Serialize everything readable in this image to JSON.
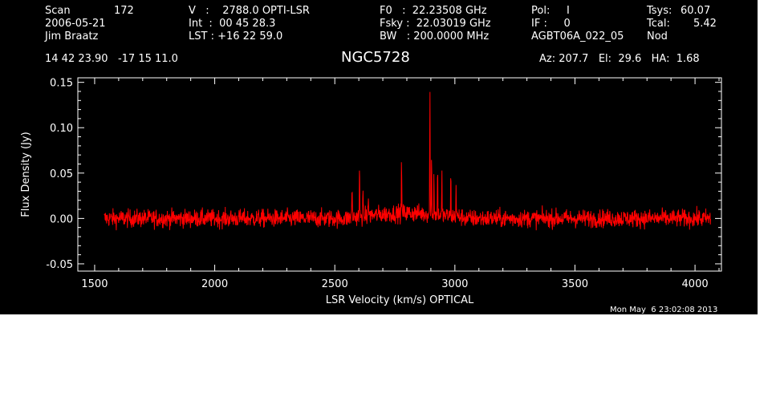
{
  "header": {
    "col1": {
      "scan_label": "Scan",
      "scan_value": "172",
      "date": "2006-05-21",
      "observer": "Jim Braatz"
    },
    "col2": {
      "v_line": "V   :    2788.0 OPTI-LSR",
      "int_line": "Int  :  00 45 28.3",
      "lst_line": "LST : +16 22 59.0"
    },
    "col3": {
      "f0_line": "F0   :  22.23508 GHz",
      "fsky_line": "Fsky :  22.03019 GHz",
      "bw_line": "BW   : 200.0000 MHz"
    },
    "col4": {
      "pol_line": "Pol:     I",
      "if_line": "IF :     0",
      "project": "AGBT06A_022_05"
    },
    "col5": {
      "tsys_label": "Tsys:",
      "tsys_value": "60.07",
      "tcal_label": "Tcal:",
      "tcal_value": "5.42",
      "mode": "Nod"
    },
    "coords": "14 42 23.90   -17 15 11.0",
    "source": "NGC5728",
    "pointing": "Az: 207.7   El:  29.6   HA:  1.68",
    "timestamp": "Mon May  6 23:02:08 2013"
  },
  "colors": {
    "background": "#000000",
    "foreground": "#ffffff",
    "trace": "#ff0000"
  },
  "chart_data": {
    "type": "line",
    "xlabel": "LSR Velocity (km/s) OPTICAL",
    "ylabel": "Flux Density (Jy)",
    "xlim": [
      1430,
      4110
    ],
    "ylim": [
      -0.058,
      0.155
    ],
    "xticks": [
      1500,
      2000,
      2500,
      3000,
      3500,
      4000
    ],
    "yticks": [
      -0.05,
      0.0,
      0.05,
      0.1,
      0.15
    ],
    "ytick_labels": [
      "-0.05",
      "0.00",
      "0.05",
      "0.10",
      "0.15"
    ],
    "series": [
      {
        "color": "#ff0000",
        "x_range": [
          1540,
          4065
        ],
        "noise_rms": 0.005,
        "baseline": 0.0,
        "emission_region": [
          2560,
          3040
        ],
        "lines": [
          {
            "x": 2572,
            "y": 0.036
          },
          {
            "x": 2603,
            "y": 0.059
          },
          {
            "x": 2617,
            "y": 0.027
          },
          {
            "x": 2640,
            "y": 0.023
          },
          {
            "x": 2778,
            "y": 0.059
          },
          {
            "x": 2896,
            "y": 0.135
          },
          {
            "x": 2903,
            "y": 0.066
          },
          {
            "x": 2913,
            "y": 0.049
          },
          {
            "x": 2928,
            "y": 0.058
          },
          {
            "x": 2946,
            "y": 0.045
          },
          {
            "x": 2983,
            "y": 0.045
          },
          {
            "x": 3005,
            "y": 0.038
          }
        ]
      }
    ]
  }
}
